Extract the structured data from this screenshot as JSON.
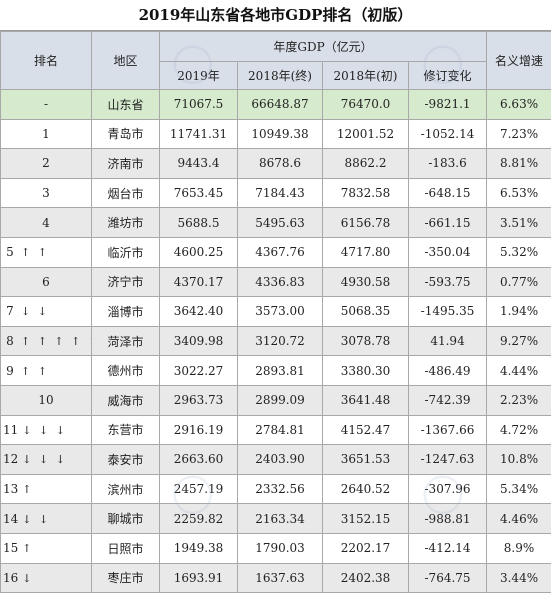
{
  "title": "2019年山东省各地市GDP排名（初版）",
  "headers": {
    "rank": "排名",
    "region": "地区",
    "gdp_group": "年度GDP（亿元）",
    "y2019": "2019年",
    "y2018_final": "2018年(终)",
    "y2018_initial": "2018年(初)",
    "revision": "修订变化",
    "growth": "名义增速"
  },
  "rows": [
    {
      "rank": "-",
      "arrows": "",
      "region": "山东省",
      "y2019": "71067.5",
      "y2018_final": "66648.87",
      "y2018_initial": "76470.0",
      "revision": "-9821.1",
      "growth": "6.63%"
    },
    {
      "rank": "1",
      "arrows": "",
      "region": "青岛市",
      "y2019": "11741.31",
      "y2018_final": "10949.38",
      "y2018_initial": "12001.52",
      "revision": "-1052.14",
      "growth": "7.23%"
    },
    {
      "rank": "2",
      "arrows": "",
      "region": "济南市",
      "y2019": "9443.4",
      "y2018_final": "8678.6",
      "y2018_initial": "8862.2",
      "revision": "-183.6",
      "growth": "8.81%"
    },
    {
      "rank": "3",
      "arrows": "",
      "region": "烟台市",
      "y2019": "7653.45",
      "y2018_final": "7184.43",
      "y2018_initial": "7832.58",
      "revision": "-648.15",
      "growth": "6.53%"
    },
    {
      "rank": "4",
      "arrows": "",
      "region": "潍坊市",
      "y2019": "5688.5",
      "y2018_final": "5495.63",
      "y2018_initial": "6156.78",
      "revision": "-661.15",
      "growth": "3.51%"
    },
    {
      "rank": "5",
      "arrows": "↑ ↑",
      "region": "临沂市",
      "y2019": "4600.25",
      "y2018_final": "4367.76",
      "y2018_initial": "4717.80",
      "revision": "-350.04",
      "growth": "5.32%"
    },
    {
      "rank": "6",
      "arrows": "",
      "region": "济宁市",
      "y2019": "4370.17",
      "y2018_final": "4336.83",
      "y2018_initial": "4930.58",
      "revision": "-593.75",
      "growth": "0.77%"
    },
    {
      "rank": "7",
      "arrows": "↓ ↓",
      "region": "淄博市",
      "y2019": "3642.40",
      "y2018_final": "3573.00",
      "y2018_initial": "5068.35",
      "revision": "-1495.35",
      "growth": "1.94%"
    },
    {
      "rank": "8",
      "arrows": "↑ ↑ ↑ ↑ ↑",
      "region": "菏泽市",
      "y2019": "3409.98",
      "y2018_final": "3120.72",
      "y2018_initial": "3078.78",
      "revision": "41.94",
      "growth": "9.27%"
    },
    {
      "rank": "9",
      "arrows": "↑ ↑",
      "region": "德州市",
      "y2019": "3022.27",
      "y2018_final": "2893.81",
      "y2018_initial": "3380.30",
      "revision": "-486.49",
      "growth": "4.44%"
    },
    {
      "rank": "10",
      "arrows": "",
      "region": "威海市",
      "y2019": "2963.73",
      "y2018_final": "2899.09",
      "y2018_initial": "3641.48",
      "revision": "-742.39",
      "growth": "2.23%"
    },
    {
      "rank": "11",
      "arrows": "↓ ↓ ↓",
      "region": "东营市",
      "y2019": "2916.19",
      "y2018_final": "2784.81",
      "y2018_initial": "4152.47",
      "revision": "-1367.66",
      "growth": "4.72%"
    },
    {
      "rank": "12",
      "arrows": "↓ ↓ ↓",
      "region": "泰安市",
      "y2019": "2663.60",
      "y2018_final": "2403.90",
      "y2018_initial": "3651.53",
      "revision": "-1247.63",
      "growth": "10.8%"
    },
    {
      "rank": "13",
      "arrows": "↑",
      "region": "滨州市",
      "y2019": "2457.19",
      "y2018_final": "2332.56",
      "y2018_initial": "2640.52",
      "revision": "-307.96",
      "growth": "5.34%"
    },
    {
      "rank": "14",
      "arrows": "↓ ↓",
      "region": "聊城市",
      "y2019": "2259.82",
      "y2018_final": "2163.34",
      "y2018_initial": "3152.15",
      "revision": "-988.81",
      "growth": "4.46%"
    },
    {
      "rank": "15",
      "arrows": "↑",
      "region": "日照市",
      "y2019": "1949.38",
      "y2018_final": "1790.03",
      "y2018_initial": "2202.17",
      "revision": "-412.14",
      "growth": "8.9%"
    },
    {
      "rank": "16",
      "arrows": "↓",
      "region": "枣庄市",
      "y2019": "1693.91",
      "y2018_final": "1637.63",
      "y2018_initial": "2402.38",
      "revision": "-764.75",
      "growth": "3.44%"
    }
  ]
}
